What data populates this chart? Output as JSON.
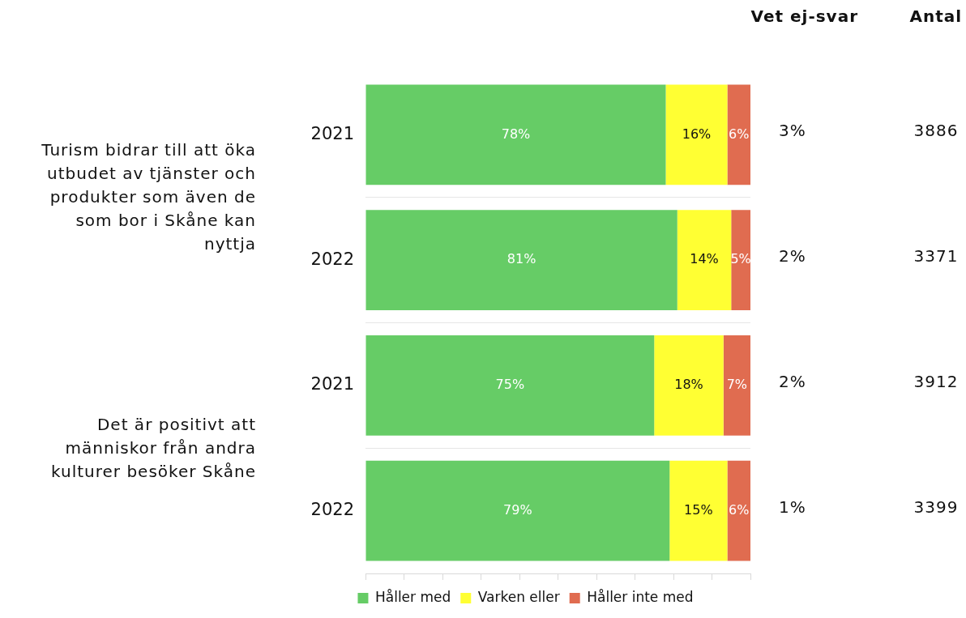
{
  "chart_data": {
    "type": "bar",
    "orientation": "horizontal",
    "stacked": true,
    "categories": [
      "2021",
      "2022",
      "2021",
      "2022"
    ],
    "series": [
      {
        "name": "Håller med",
        "color": "#66cc66",
        "values": [
          78,
          81,
          75,
          79
        ],
        "value_labels": [
          "78%",
          "81%",
          "75%",
          "79%"
        ]
      },
      {
        "name": "Varken eller",
        "color": "#ffff33",
        "values": [
          16,
          14,
          18,
          15
        ],
        "value_labels": [
          "16%",
          "14%",
          "18%",
          "15%"
        ]
      },
      {
        "name": "Håller inte med",
        "color": "#e06c50",
        "values": [
          6,
          5,
          7,
          6
        ],
        "value_labels": [
          "6%",
          "5%",
          "7%",
          "6%"
        ]
      }
    ],
    "tick_labels": "y",
    "grid": "y",
    "legend": "bottom",
    "annotations": [
      "Turism bidrar till att öka utbudet av tjänster och produkter som även de som bor i Skåne kan nyttja",
      "Det är positivt att människor från andra kulturer besöker Skåne",
      "Vet ej-svar",
      "Antal",
      "3%",
      "3886",
      "2%",
      "3371",
      "2%",
      "3912",
      "1%",
      "3399"
    ]
  }
}
